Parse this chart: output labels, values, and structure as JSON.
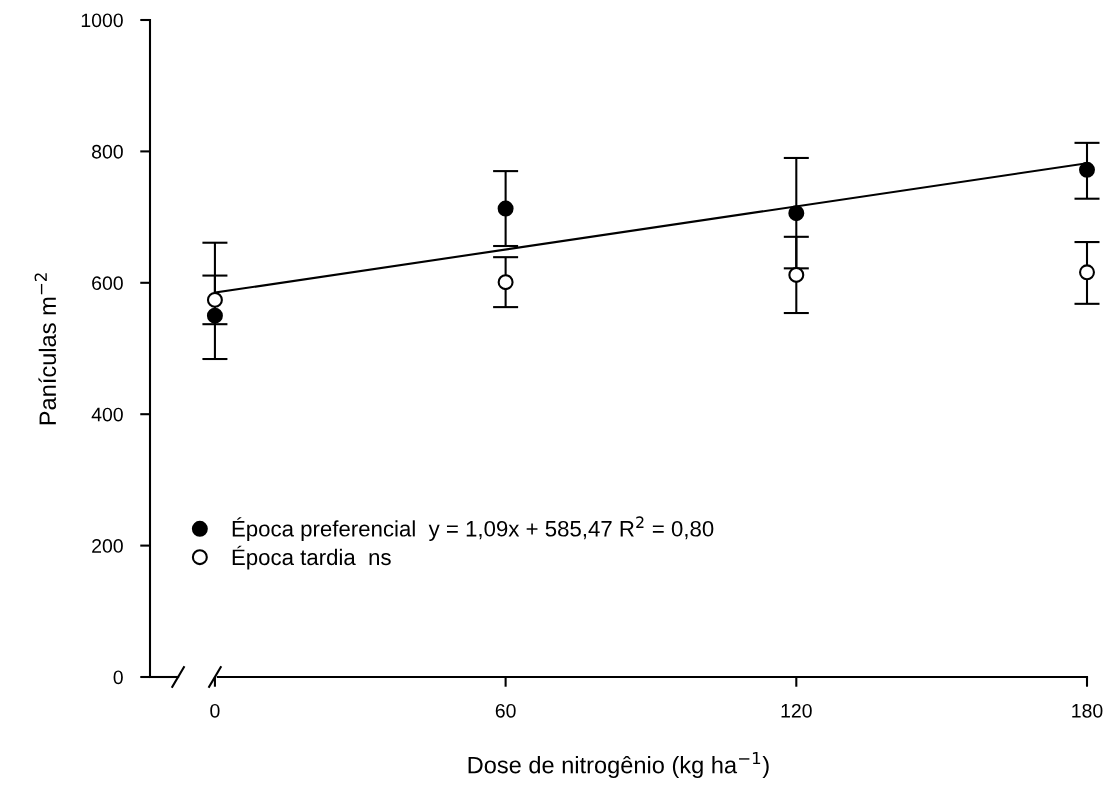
{
  "chart_data": {
    "type": "scatter",
    "xlabel": "Dose de nitrogênio (kg ha$^{−1}$)",
    "ylabel": "Panículas m$^{−2}$",
    "x": [
      0,
      60,
      120,
      180
    ],
    "series": [
      {
        "name": "Época preferencial  y = 1,09x + 585,47 R$^{2}$ = 0,80",
        "color": "#000000",
        "values": [
          550,
          713,
          706,
          772
        ],
        "errors": [
          [
            484,
            661
          ],
          57,
          84,
          [
            728,
            813
          ]
        ]
      },
      {
        "name": "Época tardia  ns",
        "color": "#ffffff",
        "values": [
          574,
          601,
          612,
          616
        ],
        "errors": [
          37,
          38,
          58,
          [
            568,
            662
          ]
        ]
      },
      {
        "type": "line",
        "color": "#000000",
        "x": [
          0,
          180
        ],
        "values": [
          585,
          782
        ],
        "marker": "none"
      }
    ],
    "xlim": [
      -13.4,
      180
    ],
    "ylim": [
      0,
      1000
    ],
    "xticks": [
      0,
      60,
      120,
      180
    ],
    "yticks": [
      0,
      200,
      400,
      600,
      800,
      1000
    ],
    "marker": "circle",
    "grid": false,
    "legend": "bottom left"
  }
}
